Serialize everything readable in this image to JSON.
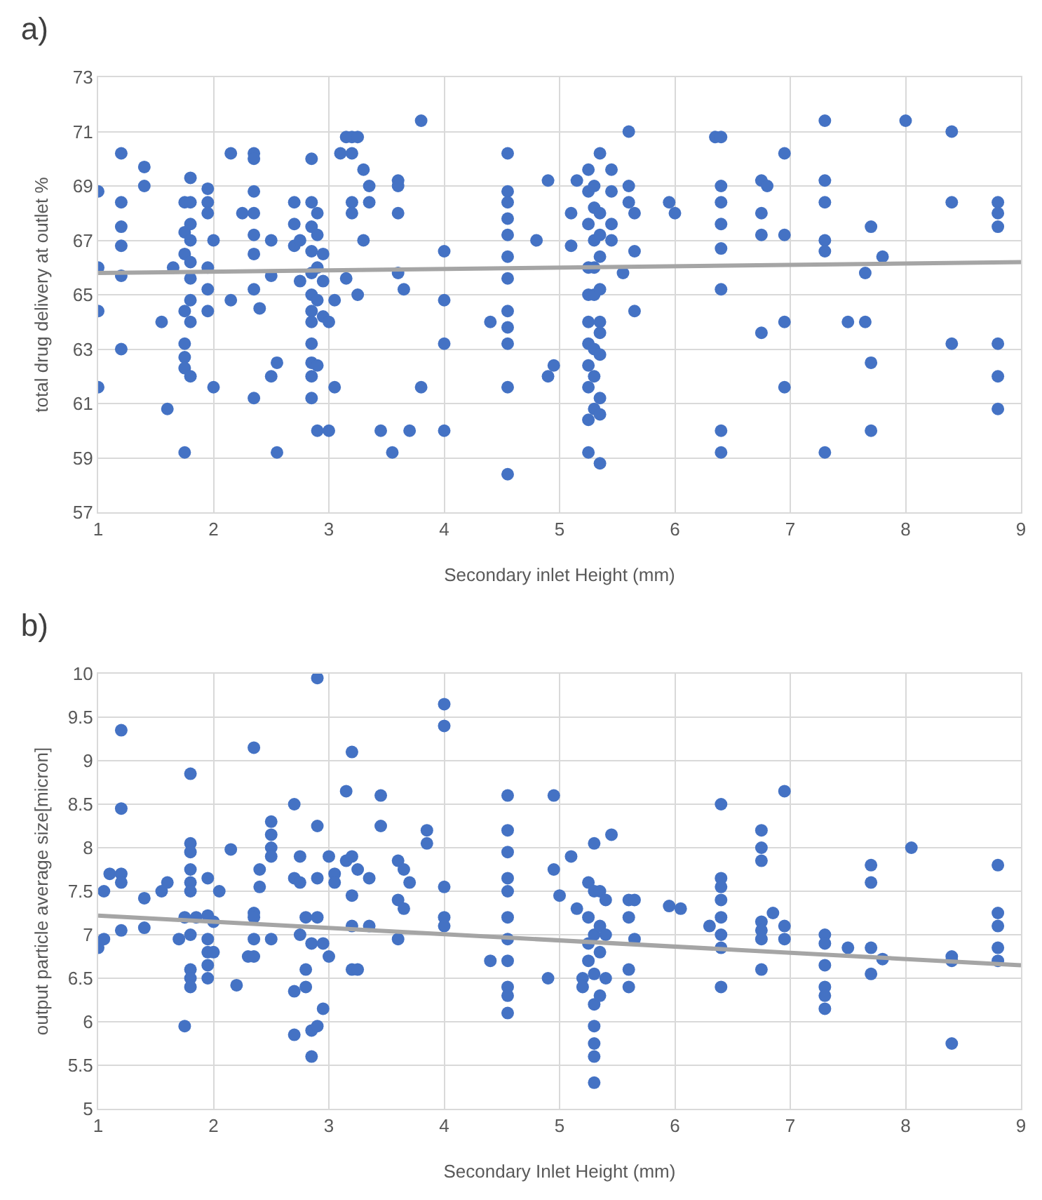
{
  "chart_data": [
    {
      "type": "scatter",
      "title": "a)",
      "xlabel": "Secondary inlet Height (mm)",
      "ylabel": "total drug delivery at outlet %",
      "xlim": [
        1,
        9
      ],
      "xticks": [
        1,
        2,
        3,
        4,
        5,
        6,
        7,
        8,
        9
      ],
      "ylim": [
        57,
        73
      ],
      "yticks": [
        57,
        59,
        61,
        63,
        65,
        67,
        69,
        71,
        73
      ],
      "grid": true,
      "series": [
        {
          "color": "#4472c4",
          "marker": "circle",
          "x": [
            1,
            1,
            1,
            1,
            1.2,
            1.2,
            1.2,
            1.2,
            1.2,
            1.2,
            1.4,
            1.4,
            1.55,
            1.6,
            1.65,
            1.75,
            1.75,
            1.75,
            1.75,
            1.75,
            1.75,
            1.75,
            1.75,
            1.8,
            1.8,
            1.8,
            1.8,
            1.8,
            1.8,
            1.8,
            1.8,
            1.8,
            1.95,
            1.95,
            1.95,
            1.95,
            1.95,
            1.95,
            2,
            2,
            2.15,
            2.15,
            2.25,
            2.35,
            2.35,
            2.35,
            2.35,
            2.35,
            2.35,
            2.35,
            2.35,
            2.4,
            2.5,
            2.5,
            2.5,
            2.55,
            2.55,
            2.7,
            2.7,
            2.7,
            2.75,
            2.75,
            2.85,
            2.85,
            2.85,
            2.85,
            2.85,
            2.85,
            2.85,
            2.85,
            2.85,
            2.85,
            2.85,
            2.85,
            2.9,
            2.9,
            2.9,
            2.9,
            2.9,
            2.9,
            2.95,
            2.95,
            2.95,
            3,
            3,
            3.05,
            3.05,
            3.1,
            3.15,
            3.15,
            3.2,
            3.2,
            3.2,
            3.2,
            3.25,
            3.25,
            3.3,
            3.3,
            3.35,
            3.35,
            3.45,
            3.55,
            3.6,
            3.6,
            3.6,
            3.6,
            3.65,
            3.7,
            3.8,
            3.8,
            4,
            4,
            4,
            4,
            4.4,
            4.55,
            4.55,
            4.55,
            4.55,
            4.55,
            4.55,
            4.55,
            4.55,
            4.55,
            4.55,
            4.55,
            4.55,
            4.8,
            4.9,
            4.9,
            4.95,
            5.1,
            5.1,
            5.15,
            5.25,
            5.25,
            5.25,
            5.25,
            5.25,
            5.25,
            5.25,
            5.25,
            5.25,
            5.25,
            5.25,
            5.3,
            5.3,
            5.3,
            5.3,
            5.3,
            5.3,
            5.3,
            5.3,
            5.35,
            5.35,
            5.35,
            5.35,
            5.35,
            5.35,
            5.35,
            5.35,
            5.35,
            5.35,
            5.35,
            5.45,
            5.45,
            5.45,
            5.45,
            5.55,
            5.6,
            5.6,
            5.6,
            5.65,
            5.65,
            5.65,
            5.95,
            6,
            6.35,
            6.4,
            6.4,
            6.4,
            6.4,
            6.4,
            6.4,
            6.4,
            6.4,
            6.75,
            6.75,
            6.75,
            6.75,
            6.8,
            6.95,
            6.95,
            6.95,
            6.95,
            7.3,
            7.3,
            7.3,
            7.3,
            7.3,
            7.3,
            7.5,
            7.65,
            7.65,
            7.7,
            7.7,
            7.7,
            7.8,
            8,
            8.4,
            8.4,
            8.4,
            8.8,
            8.8,
            8.8,
            8.8,
            8.8,
            8.8
          ],
          "values": [
            68.8,
            66.0,
            64.4,
            61.6,
            70.2,
            68.4,
            67.5,
            66.8,
            65.7,
            63.0,
            69.7,
            69.0,
            64.0,
            60.8,
            66.0,
            68.4,
            67.3,
            66.5,
            64.4,
            63.2,
            62.7,
            62.3,
            59.2,
            69.3,
            68.4,
            67.6,
            67.0,
            66.2,
            65.6,
            64.8,
            64.0,
            62.0,
            68.9,
            68.4,
            68.0,
            66.0,
            65.2,
            64.4,
            67.0,
            61.6,
            70.2,
            64.8,
            68.0,
            70.2,
            70.0,
            68.8,
            68.0,
            67.2,
            66.5,
            65.2,
            61.2,
            64.5,
            67.0,
            65.7,
            62.0,
            62.5,
            59.2,
            68.4,
            67.6,
            66.8,
            67.0,
            65.5,
            70.0,
            68.4,
            67.5,
            66.6,
            65.8,
            65.0,
            64.4,
            64.0,
            63.2,
            62.5,
            62.0,
            61.2,
            68.0,
            67.2,
            66.0,
            64.8,
            62.4,
            60.0,
            66.5,
            65.5,
            64.2,
            64.0,
            60.0,
            64.8,
            61.6,
            70.2,
            70.8,
            65.6,
            70.8,
            70.2,
            68.4,
            68.0,
            70.8,
            65.0,
            69.6,
            67.0,
            69.0,
            68.4,
            60.0,
            59.2,
            69.2,
            69.0,
            68.0,
            65.8,
            65.2,
            60.0,
            71.4,
            61.6,
            66.6,
            64.8,
            63.2,
            60.0,
            64.0,
            70.2,
            68.8,
            68.4,
            67.8,
            67.2,
            66.4,
            65.6,
            64.4,
            63.8,
            63.2,
            61.6,
            58.4,
            67.0,
            69.2,
            62.0,
            62.4,
            68.0,
            66.8,
            69.2,
            69.6,
            68.8,
            67.6,
            66.0,
            65.0,
            64.0,
            63.2,
            62.4,
            61.6,
            60.4,
            59.2,
            69.0,
            68.2,
            67.0,
            66.0,
            65.0,
            63.0,
            62.0,
            60.8,
            70.2,
            68.0,
            67.2,
            66.4,
            65.2,
            64.0,
            63.6,
            62.8,
            61.2,
            60.6,
            58.8,
            69.6,
            68.8,
            67.6,
            67.0,
            65.8,
            71.0,
            69.0,
            68.4,
            68.0,
            66.6,
            64.4,
            68.4,
            68.0,
            70.8,
            70.8,
            69.0,
            68.4,
            67.6,
            66.7,
            65.2,
            60.0,
            59.2,
            69.2,
            68.0,
            67.2,
            63.6,
            69.0,
            70.2,
            67.2,
            64.0,
            61.6,
            71.4,
            69.2,
            68.4,
            67.0,
            66.6,
            59.2,
            64.0,
            65.8,
            64.0,
            67.5,
            62.5,
            60.0,
            66.4,
            71.4,
            71.0,
            68.4,
            63.2,
            68.4,
            68.0,
            67.5,
            63.2,
            62.0,
            60.8
          ]
        },
        {
          "type": "line",
          "color": "#a5a5a5",
          "marker": "none",
          "x": [
            1,
            9
          ],
          "values": [
            65.8,
            66.2
          ]
        }
      ]
    },
    {
      "type": "scatter",
      "title": "b)",
      "xlabel": "Secondary Inlet Height (mm)",
      "ylabel": "output particle average size[micron]",
      "xlim": [
        1,
        9
      ],
      "xticks": [
        1,
        2,
        3,
        4,
        5,
        6,
        7,
        8,
        9
      ],
      "ylim": [
        5,
        10
      ],
      "yticks": [
        5,
        5.5,
        6,
        6.5,
        7,
        7.5,
        8,
        8.5,
        9,
        9.5,
        10
      ],
      "grid": true,
      "series": [
        {
          "color": "#4472c4",
          "marker": "circle",
          "x": [
            1,
            1.05,
            1.05,
            1.1,
            1.2,
            1.2,
            1.2,
            1.2,
            1.2,
            1.4,
            1.4,
            1.55,
            1.6,
            1.7,
            1.75,
            1.75,
            1.8,
            1.8,
            1.8,
            1.8,
            1.8,
            1.8,
            1.8,
            1.8,
            1.8,
            1.8,
            1.85,
            1.95,
            1.95,
            1.95,
            1.95,
            1.95,
            1.95,
            2,
            2,
            2.05,
            2.15,
            2.2,
            2.3,
            2.35,
            2.35,
            2.35,
            2.35,
            2.35,
            2.4,
            2.4,
            2.5,
            2.5,
            2.5,
            2.5,
            2.5,
            2.7,
            2.7,
            2.7,
            2.7,
            2.75,
            2.75,
            2.75,
            2.8,
            2.8,
            2.8,
            2.85,
            2.85,
            2.85,
            2.9,
            2.9,
            2.9,
            2.9,
            2.9,
            2.95,
            2.95,
            3,
            3,
            3.05,
            3.05,
            3.15,
            3.15,
            3.2,
            3.2,
            3.2,
            3.2,
            3.2,
            3.25,
            3.25,
            3.35,
            3.35,
            3.45,
            3.45,
            3.6,
            3.6,
            3.6,
            3.65,
            3.65,
            3.7,
            3.85,
            3.85,
            4,
            4,
            4,
            4,
            4,
            4.4,
            4.55,
            4.55,
            4.55,
            4.55,
            4.55,
            4.55,
            4.55,
            4.55,
            4.55,
            4.55,
            4.55,
            4.9,
            4.95,
            4.95,
            5,
            5.1,
            5.15,
            5.2,
            5.2,
            5.25,
            5.25,
            5.25,
            5.25,
            5.3,
            5.3,
            5.3,
            5.3,
            5.3,
            5.3,
            5.3,
            5.3,
            5.3,
            5.35,
            5.35,
            5.35,
            5.35,
            5.4,
            5.4,
            5.4,
            5.45,
            5.6,
            5.6,
            5.6,
            5.6,
            5.65,
            5.65,
            5.95,
            6.05,
            6.3,
            6.4,
            6.4,
            6.4,
            6.4,
            6.4,
            6.4,
            6.4,
            6.4,
            6.75,
            6.75,
            6.75,
            6.75,
            6.75,
            6.75,
            6.75,
            6.85,
            6.95,
            6.95,
            6.95,
            7.3,
            7.3,
            7.3,
            7.3,
            7.3,
            7.3,
            7.5,
            7.7,
            7.7,
            7.7,
            7.7,
            7.8,
            8.05,
            8.4,
            8.4,
            8.4,
            8.8,
            8.8,
            8.8,
            8.8,
            8.8
          ],
          "values": [
            6.85,
            7.5,
            6.95,
            7.7,
            9.35,
            8.45,
            7.7,
            7.6,
            7.05,
            7.42,
            7.08,
            7.5,
            7.6,
            6.95,
            7.2,
            5.95,
            8.85,
            8.05,
            7.95,
            7.75,
            7.6,
            7.5,
            7.0,
            6.6,
            6.5,
            6.4,
            7.2,
            7.65,
            7.22,
            6.95,
            6.8,
            6.65,
            6.5,
            7.15,
            6.8,
            7.5,
            7.98,
            6.42,
            6.75,
            9.15,
            7.25,
            7.2,
            6.95,
            6.75,
            7.75,
            7.55,
            8.3,
            8.15,
            8.0,
            7.9,
            6.95,
            8.5,
            7.65,
            6.35,
            5.85,
            7.9,
            7.6,
            7.0,
            7.2,
            6.6,
            6.4,
            5.6,
            5.9,
            6.9,
            9.95,
            8.25,
            7.65,
            7.2,
            5.95,
            6.15,
            6.9,
            7.9,
            6.75,
            7.7,
            7.6,
            8.65,
            7.85,
            9.1,
            7.9,
            7.45,
            7.1,
            6.6,
            7.75,
            6.6,
            7.65,
            7.1,
            8.6,
            8.25,
            7.85,
            7.4,
            6.95,
            7.75,
            7.3,
            7.6,
            8.2,
            8.05,
            9.65,
            9.4,
            7.55,
            7.2,
            7.1,
            6.7,
            8.6,
            8.2,
            7.95,
            7.65,
            7.5,
            7.2,
            6.95,
            6.7,
            6.4,
            6.3,
            6.1,
            6.5,
            8.6,
            7.75,
            7.45,
            7.9,
            7.3,
            6.5,
            6.4,
            7.6,
            7.2,
            6.9,
            6.7,
            8.05,
            7.5,
            7.0,
            6.55,
            6.2,
            5.95,
            5.75,
            5.6,
            5.3,
            7.5,
            7.1,
            6.8,
            6.3,
            7.4,
            7.0,
            6.5,
            8.15,
            7.4,
            7.2,
            6.6,
            6.4,
            7.4,
            6.95,
            7.33,
            7.3,
            7.1,
            8.5,
            7.65,
            7.55,
            7.4,
            7.2,
            7.0,
            6.85,
            6.4,
            8.2,
            8.0,
            7.85,
            7.15,
            7.05,
            6.95,
            6.6,
            7.25,
            8.65,
            7.1,
            6.95,
            7.0,
            6.9,
            6.65,
            6.4,
            6.3,
            6.15,
            6.85,
            7.8,
            7.6,
            6.85,
            6.55,
            6.72,
            8.0,
            6.75,
            6.7,
            5.75,
            7.8,
            7.25,
            7.1,
            6.85,
            6.7
          ]
        },
        {
          "type": "line",
          "color": "#a5a5a5",
          "marker": "none",
          "x": [
            1,
            9
          ],
          "values": [
            7.22,
            6.65
          ]
        }
      ]
    }
  ]
}
